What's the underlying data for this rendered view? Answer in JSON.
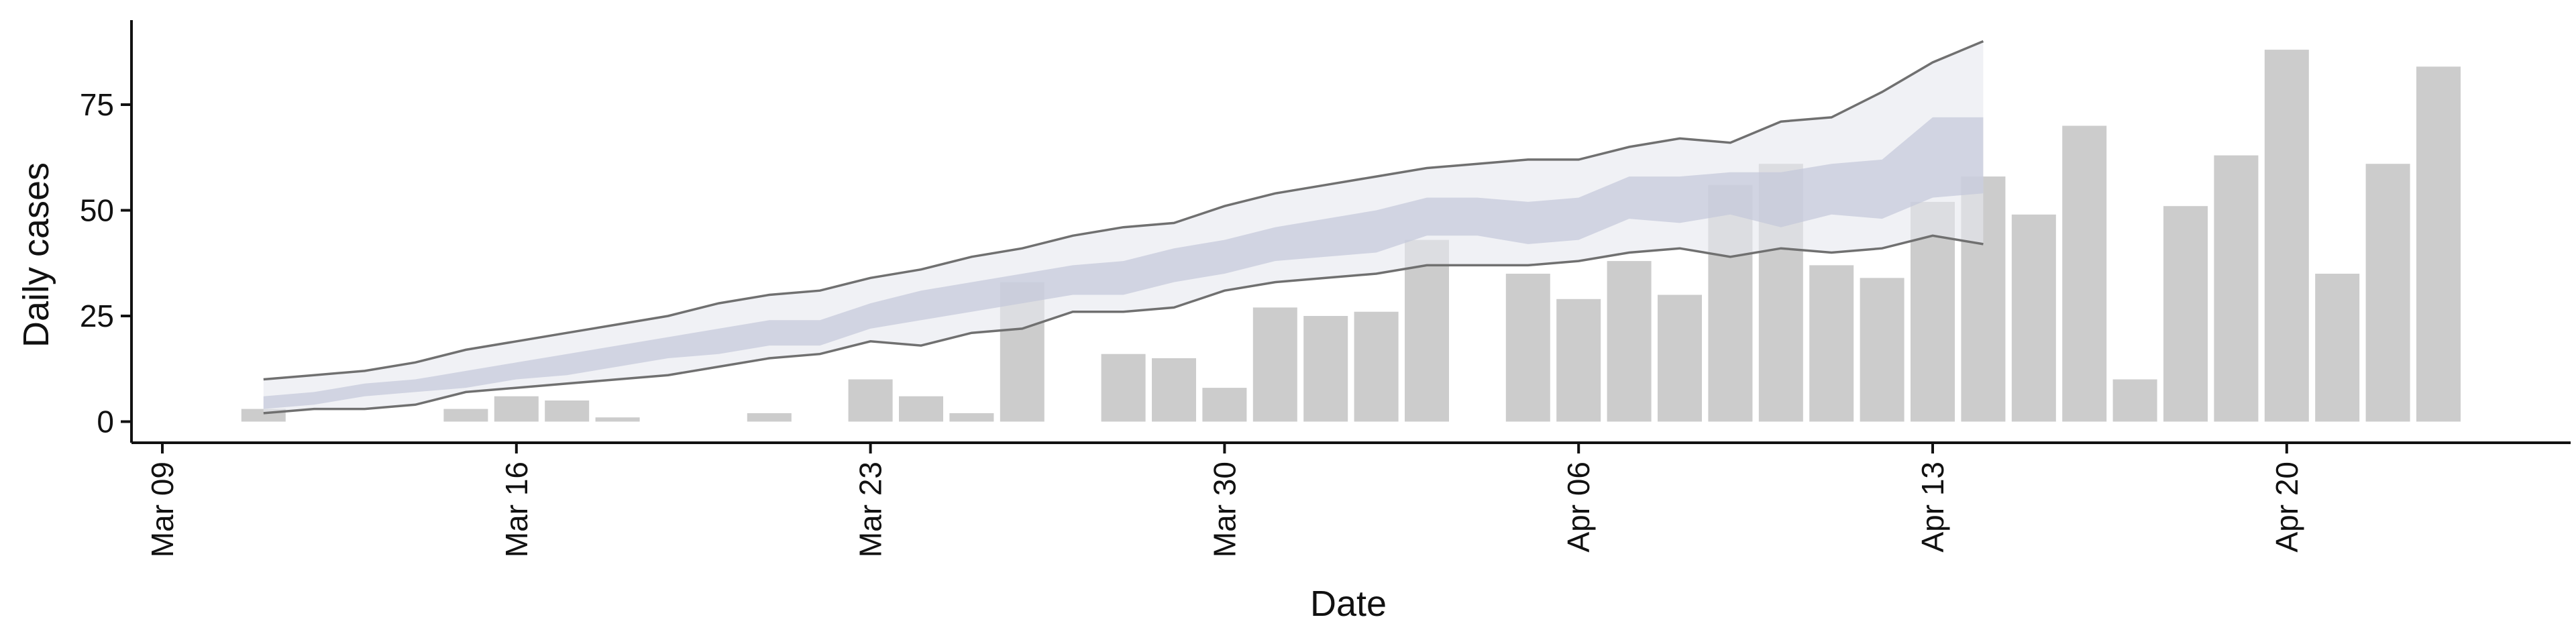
{
  "chart_data": {
    "type": "bar",
    "title": "",
    "xlabel": "Date",
    "ylabel": "Daily cases",
    "x_start": "2020-03-09",
    "x_end": "2020-04-26",
    "ylim": [
      -5,
      95
    ],
    "yticks": [
      0,
      25,
      50,
      75
    ],
    "xticks": [
      {
        "date": "2020-03-09",
        "label": "Mar 09"
      },
      {
        "date": "2020-03-16",
        "label": "Mar 16"
      },
      {
        "date": "2020-03-23",
        "label": "Mar 23"
      },
      {
        "date": "2020-03-30",
        "label": "Mar 30"
      },
      {
        "date": "2020-04-06",
        "label": "Apr 06"
      },
      {
        "date": "2020-04-13",
        "label": "Apr 13"
      },
      {
        "date": "2020-04-20",
        "label": "Apr 20"
      }
    ],
    "grid": false,
    "colors": {
      "bars": "#cccccc",
      "outer_band": "#e6e7ee",
      "inner_band": "#c3c8da",
      "bound_lines": "#707070",
      "axis": "#111111"
    },
    "bars": [
      {
        "date": "2020-03-11",
        "value": 3
      },
      {
        "date": "2020-03-15",
        "value": 3
      },
      {
        "date": "2020-03-16",
        "value": 6
      },
      {
        "date": "2020-03-17",
        "value": 5
      },
      {
        "date": "2020-03-18",
        "value": 1
      },
      {
        "date": "2020-03-21",
        "value": 2
      },
      {
        "date": "2020-03-23",
        "value": 10
      },
      {
        "date": "2020-03-24",
        "value": 6
      },
      {
        "date": "2020-03-25",
        "value": 2
      },
      {
        "date": "2020-03-26",
        "value": 33
      },
      {
        "date": "2020-03-28",
        "value": 16
      },
      {
        "date": "2020-03-29",
        "value": 15
      },
      {
        "date": "2020-03-30",
        "value": 8
      },
      {
        "date": "2020-03-31",
        "value": 27
      },
      {
        "date": "2020-04-01",
        "value": 25
      },
      {
        "date": "2020-04-02",
        "value": 26
      },
      {
        "date": "2020-04-03",
        "value": 43
      },
      {
        "date": "2020-04-05",
        "value": 35
      },
      {
        "date": "2020-04-06",
        "value": 29
      },
      {
        "date": "2020-04-07",
        "value": 38
      },
      {
        "date": "2020-04-08",
        "value": 30
      },
      {
        "date": "2020-04-09",
        "value": 56
      },
      {
        "date": "2020-04-10",
        "value": 61
      },
      {
        "date": "2020-04-11",
        "value": 37
      },
      {
        "date": "2020-04-12",
        "value": 34
      },
      {
        "date": "2020-04-13",
        "value": 52
      },
      {
        "date": "2020-04-14",
        "value": 58
      },
      {
        "date": "2020-04-15",
        "value": 49
      },
      {
        "date": "2020-04-16",
        "value": 70
      },
      {
        "date": "2020-04-17",
        "value": 10
      },
      {
        "date": "2020-04-18",
        "value": 51
      },
      {
        "date": "2020-04-19",
        "value": 63
      },
      {
        "date": "2020-04-20",
        "value": 88
      },
      {
        "date": "2020-04-21",
        "value": 35
      },
      {
        "date": "2020-04-22",
        "value": 61
      },
      {
        "date": "2020-04-23",
        "value": 84
      }
    ],
    "band_dates": [
      "2020-03-11",
      "2020-03-12",
      "2020-03-13",
      "2020-03-14",
      "2020-03-15",
      "2020-03-16",
      "2020-03-17",
      "2020-03-18",
      "2020-03-19",
      "2020-03-20",
      "2020-03-21",
      "2020-03-22",
      "2020-03-23",
      "2020-03-24",
      "2020-03-25",
      "2020-03-26",
      "2020-03-27",
      "2020-03-28",
      "2020-03-29",
      "2020-03-30",
      "2020-03-31",
      "2020-04-01",
      "2020-04-02",
      "2020-04-03",
      "2020-04-04",
      "2020-04-05",
      "2020-04-06",
      "2020-04-07",
      "2020-04-08",
      "2020-04-09",
      "2020-04-10",
      "2020-04-11",
      "2020-04-12",
      "2020-04-13",
      "2020-04-14"
    ],
    "outer_upper": [
      10,
      11,
      12,
      14,
      17,
      19,
      21,
      23,
      25,
      28,
      30,
      31,
      34,
      36,
      39,
      41,
      44,
      46,
      47,
      51,
      54,
      56,
      58,
      60,
      61,
      62,
      62,
      65,
      67,
      66,
      71,
      72,
      78,
      85,
      90
    ],
    "outer_lower": [
      2,
      3,
      3,
      4,
      7,
      8,
      9,
      10,
      11,
      13,
      15,
      16,
      19,
      18,
      21,
      22,
      26,
      26,
      27,
      31,
      33,
      34,
      35,
      37,
      37,
      37,
      38,
      40,
      41,
      39,
      41,
      40,
      41,
      44,
      42
    ],
    "inner_upper": [
      6,
      7,
      9,
      10,
      12,
      14,
      16,
      18,
      20,
      22,
      24,
      24,
      28,
      31,
      33,
      35,
      37,
      38,
      41,
      43,
      46,
      48,
      50,
      53,
      53,
      52,
      53,
      58,
      58,
      59,
      59,
      61,
      62,
      72,
      72
    ],
    "inner_lower": [
      3,
      4,
      6,
      7,
      8,
      10,
      11,
      13,
      15,
      16,
      18,
      18,
      22,
      24,
      26,
      28,
      30,
      30,
      33,
      35,
      38,
      39,
      40,
      44,
      44,
      42,
      43,
      48,
      47,
      49,
      46,
      49,
      48,
      53,
      54
    ]
  }
}
